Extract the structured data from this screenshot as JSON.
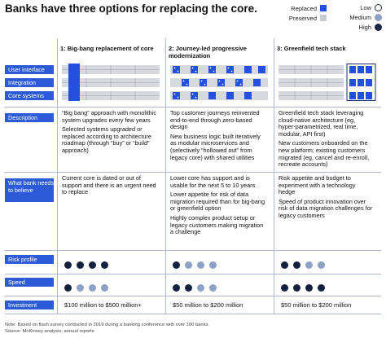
{
  "title": "Banks have three options for replacing the core.",
  "legend": {
    "replaced": "Replaced",
    "preserved": "Preserved",
    "low": "Low",
    "medium": "Medium",
    "high": "High"
  },
  "colors": {
    "replaced": "#2450e0",
    "preserved": "#c9cbd2",
    "grid_dark": "#1c2a6e",
    "accent_blue": "#2d5bd8",
    "dot_dark": "#14203f",
    "legend_low": "#ffffff",
    "legend_medium": "#8ea0c4",
    "legend_high": "#1d2746"
  },
  "columns": [
    {
      "header": "1: Big-bang replacement of core",
      "icon": "big-bang-system-diagram"
    },
    {
      "header": "2: Journey-led progressive modernization",
      "icon": "journey-led-system-diagram"
    },
    {
      "header": "3: Greenfield tech stack",
      "icon": "greenfield-system-diagram"
    }
  ],
  "system_layers": [
    "User interface",
    "Integration",
    "Core systems"
  ],
  "rows": {
    "description": {
      "label": "Description",
      "cells": [
        [
          "“Big bang” approach with monolithic system upgrades every few years",
          "Selected systems upgraded or replaced according to architecture roadmap (through “buy” or “build” approach)"
        ],
        [
          "Top customer journeys reinvented end-to-end through zero-based design",
          "New business logic built iteratively as modular microservices and (selectively “hollowed out” from legacy core) with shared utilities"
        ],
        [
          "Greenfield tech stack leveraging cloud-native architecture (eg, hyper-parametrized, real time, modular, API first)",
          "New customers onboarded on the new platform; existing customers migrated (eg, cancel and re-enroll, recreate accounts)"
        ]
      ]
    },
    "what_bank_needs": {
      "label": "What bank needs to believe",
      "cells": [
        [
          "Current core is dated or out of support and there is an urgent need to replace"
        ],
        [
          "Lower core has support and is usable for the next 5 to 10 years",
          "Lower appetite for risk of data migration required than for big-bang or greenfield option",
          "Highly complex product setup or legacy customers making migration a challenge"
        ],
        [
          "Risk appetite and budget to experiment with a technology hedge",
          "Speed of product innovation over risk of data migration challenges for legacy customers"
        ]
      ]
    },
    "risk_profile": {
      "label": "Risk profile",
      "levels": [
        [
          "high",
          "high",
          "high",
          "high"
        ],
        [
          "high",
          "medium",
          "medium",
          "medium"
        ],
        [
          "high",
          "high",
          "medium",
          "medium"
        ]
      ]
    },
    "speed": {
      "label": "Speed",
      "levels": [
        [
          "high",
          "medium",
          "medium",
          "medium"
        ],
        [
          "high",
          "high",
          "medium",
          "medium"
        ],
        [
          "high",
          "high",
          "high",
          "high"
        ]
      ]
    },
    "investment": {
      "label": "Investment",
      "cells": [
        "$100 million to $500 million+",
        "$50 million to $200 million",
        "$50 million to $200 million"
      ]
    }
  },
  "footnote": {
    "note": "Note: Based on flash survey conducted in 2019 during a banking conference with over 100 banks.",
    "source": "Source: McKinsey analysis; annual reports"
  }
}
